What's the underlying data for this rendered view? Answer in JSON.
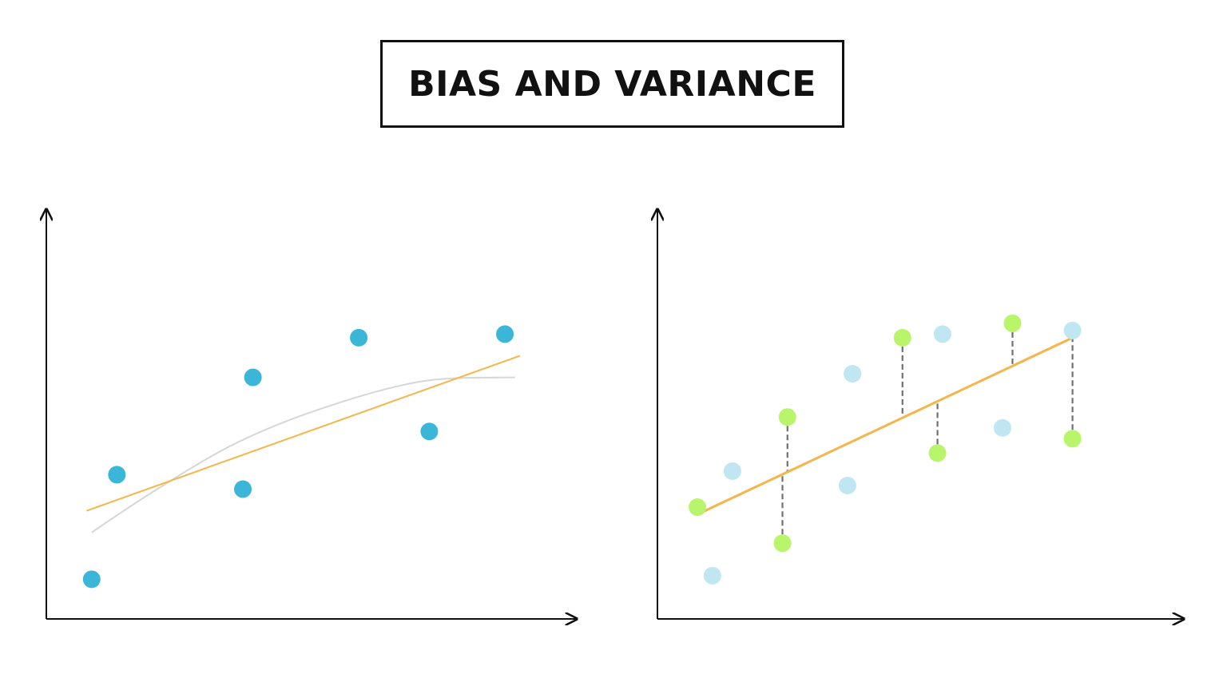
{
  "title": "BIAS AND VARIANCE",
  "colors": {
    "axis": "#111111",
    "linear_fit": "#f5b54a",
    "curve_fit": "#d6d6d6",
    "left_points": "#3bb5d8",
    "train_points": "#b8f56a",
    "test_points": "#bfe6f1",
    "residual": "#707070"
  },
  "chart_data": [
    {
      "type": "scatter",
      "title": "",
      "xlabel": "",
      "ylabel": "",
      "grid": false,
      "xlim": [
        0,
        10
      ],
      "ylim": [
        0,
        10
      ],
      "series": [
        {
          "role": "points",
          "points": [
            [
              0.9,
              1.1
            ],
            [
              1.4,
              4.0
            ],
            [
              3.9,
              3.6
            ],
            [
              4.1,
              6.7
            ],
            [
              6.2,
              7.8
            ],
            [
              7.6,
              5.2
            ],
            [
              9.1,
              7.9
            ]
          ]
        },
        {
          "role": "linear-fit",
          "points": [
            [
              0.8,
              3.0
            ],
            [
              9.4,
              7.3
            ]
          ]
        },
        {
          "role": "curve-fit",
          "points": [
            [
              0.9,
              2.4
            ],
            [
              2.2,
              3.6
            ],
            [
              3.8,
              4.9
            ],
            [
              5.6,
              5.9
            ],
            [
              7.5,
              6.6
            ],
            [
              9.3,
              6.7
            ]
          ]
        }
      ]
    },
    {
      "type": "scatter",
      "title": "",
      "xlabel": "",
      "ylabel": "",
      "grid": false,
      "xlim": [
        0,
        10
      ],
      "ylim": [
        0,
        10
      ],
      "series": [
        {
          "role": "train-points",
          "points": [
            [
              0.8,
              3.1
            ],
            [
              2.5,
              2.1
            ],
            [
              2.6,
              5.6
            ],
            [
              4.9,
              7.8
            ],
            [
              5.6,
              4.6
            ],
            [
              7.1,
              8.2
            ],
            [
              8.3,
              5.0
            ]
          ]
        },
        {
          "role": "test-points",
          "points": [
            [
              1.1,
              1.2
            ],
            [
              1.5,
              4.1
            ],
            [
              3.8,
              3.7
            ],
            [
              3.9,
              6.8
            ],
            [
              5.7,
              7.9
            ],
            [
              6.9,
              5.3
            ],
            [
              8.3,
              8.0
            ]
          ]
        },
        {
          "role": "linear-fit",
          "points": [
            [
              0.8,
              2.9
            ],
            [
              8.3,
              7.8
            ]
          ]
        }
      ]
    }
  ]
}
